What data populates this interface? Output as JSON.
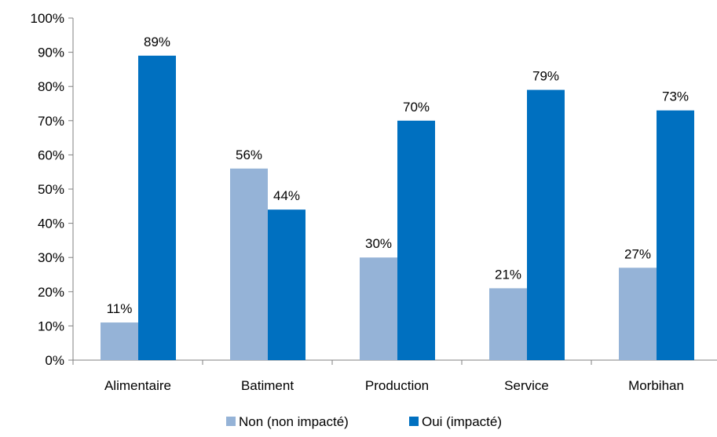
{
  "chart_data": {
    "type": "bar",
    "categories": [
      "Alimentaire",
      "Batiment",
      "Production",
      "Service",
      "Morbihan"
    ],
    "series": [
      {
        "name": "Non (non impacté)",
        "color": "#95b3d7",
        "values": [
          11,
          56,
          30,
          21,
          27
        ],
        "labels": [
          "11%",
          "56%",
          "30%",
          "21%",
          "27%"
        ]
      },
      {
        "name": "Oui (impacté)",
        "color": "#0070c0",
        "values": [
          89,
          44,
          70,
          79,
          73
        ],
        "labels": [
          "89%",
          "44%",
          "70%",
          "79%",
          "73%"
        ]
      }
    ],
    "ylim": [
      0,
      100
    ],
    "yticks": [
      0,
      10,
      20,
      30,
      40,
      50,
      60,
      70,
      80,
      90,
      100
    ],
    "ytick_labels": [
      "0%",
      "10%",
      "20%",
      "30%",
      "40%",
      "50%",
      "60%",
      "70%",
      "80%",
      "90%",
      "100%"
    ],
    "grid": false,
    "legend_position": "bottom"
  }
}
